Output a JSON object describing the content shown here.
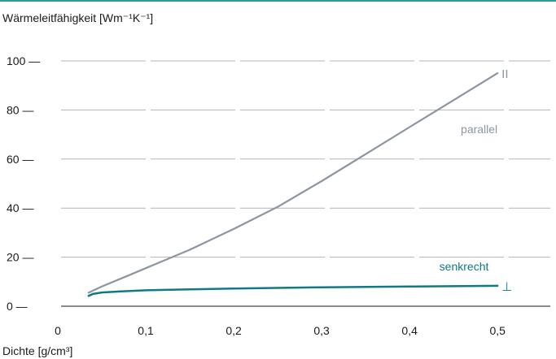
{
  "chart_data": {
    "type": "line",
    "title": "",
    "ylabel": "Wärmeleitfähigkeit [Wm⁻¹K⁻¹]",
    "xlabel": "Dichte [g/cm³]",
    "xlim": [
      0,
      0.56
    ],
    "ylim": [
      0,
      100
    ],
    "grid": "horizontal dashed",
    "x_tick_values": [
      0,
      0.1,
      0.2,
      0.3,
      0.4,
      0.5
    ],
    "x_tick_labels": [
      "0",
      "0,1",
      "0,2",
      "0,3",
      "0,4",
      "0,5"
    ],
    "y_tick_values": [
      0,
      20,
      40,
      60,
      80,
      100
    ],
    "y_tick_labels": [
      "0 —",
      "20 —",
      "40 —",
      "60 —",
      "80 —",
      "100 —"
    ],
    "series": [
      {
        "name": "parallel",
        "end_symbol": "II",
        "color": "#8c96a0",
        "x": [
          0.035,
          0.05,
          0.08,
          0.1,
          0.12,
          0.15,
          0.2,
          0.25,
          0.3,
          0.35,
          0.4,
          0.45,
          0.5
        ],
        "y": [
          5.5,
          8,
          12.5,
          15.5,
          18.5,
          23,
          31.5,
          40.5,
          51,
          62,
          73,
          84,
          95
        ]
      },
      {
        "name": "senkrecht",
        "end_symbol": "⊥",
        "color": "#0f7a86",
        "x": [
          0.035,
          0.04,
          0.05,
          0.07,
          0.1,
          0.15,
          0.2,
          0.3,
          0.4,
          0.5
        ],
        "y": [
          4.2,
          5.0,
          5.6,
          6.0,
          6.5,
          6.9,
          7.2,
          7.7,
          8.0,
          8.3
        ]
      }
    ]
  }
}
